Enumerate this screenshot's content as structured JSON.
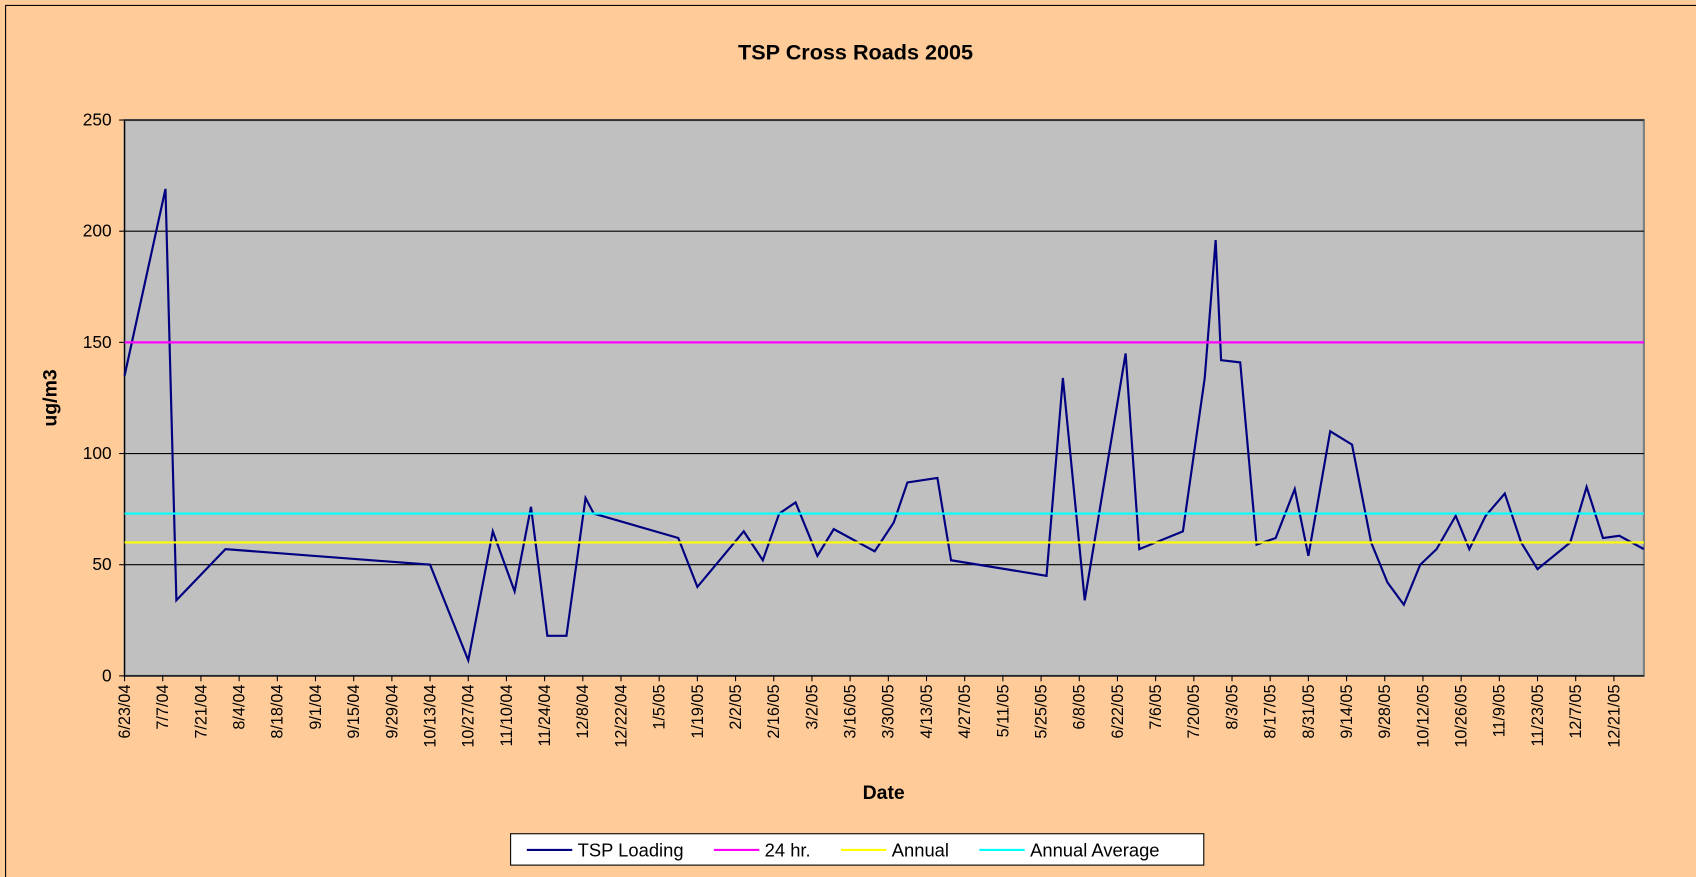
{
  "chart_data": {
    "type": "line",
    "title": "TSP Cross Roads 2005",
    "x_label": "Date",
    "y_label": "ug/m3",
    "x": [
      "2004-06-23",
      "2004-07-08",
      "2004-07-12",
      "2004-07-30",
      "2004-10-13",
      "2004-10-27",
      "2004-11-05",
      "2004-11-13",
      "2004-11-19",
      "2004-11-25",
      "2004-12-02",
      "2004-12-09",
      "2004-12-12",
      "2005-01-12",
      "2005-01-19",
      "2005-02-05",
      "2005-02-12",
      "2005-02-18",
      "2005-02-24",
      "2005-03-04",
      "2005-03-10",
      "2005-03-25",
      "2005-04-01",
      "2005-04-06",
      "2005-04-17",
      "2005-04-22",
      "2005-05-27",
      "2005-06-02",
      "2005-06-10",
      "2005-06-25",
      "2005-06-30",
      "2005-07-16",
      "2005-07-24",
      "2005-07-28",
      "2005-07-30",
      "2005-08-06",
      "2005-08-12",
      "2005-08-19",
      "2005-08-26",
      "2005-08-31",
      "2005-09-08",
      "2005-09-16",
      "2005-09-23",
      "2005-09-29",
      "2005-10-05",
      "2005-10-11",
      "2005-10-17",
      "2005-10-24",
      "2005-10-29",
      "2005-11-04",
      "2005-11-11",
      "2005-11-17",
      "2005-11-23",
      "2005-12-05",
      "2005-12-11",
      "2005-12-17",
      "2005-12-23",
      "2006-01-01"
    ],
    "series": [
      {
        "name": "TSP Loading",
        "color": "#000080",
        "values": [
          135,
          219,
          34,
          57,
          50,
          7,
          65,
          38,
          76,
          18,
          18,
          80,
          73,
          62,
          40,
          65,
          52,
          73,
          78,
          54,
          66,
          56,
          69,
          87,
          89,
          52,
          45,
          134,
          34,
          145,
          57,
          65,
          134,
          196,
          142,
          141,
          59,
          62,
          84,
          54,
          110,
          104,
          60,
          42,
          32,
          50,
          57,
          72,
          57,
          72,
          82,
          60,
          48,
          60,
          85,
          62,
          63,
          57
        ]
      },
      {
        "name": "24 hr.",
        "color": "#ff00ff",
        "value": 150
      },
      {
        "name": "Annual",
        "color": "#ffff00",
        "value": 60
      },
      {
        "name": "Annual Average",
        "color": "#00ffff",
        "value": 73
      }
    ],
    "xlim": [
      "2004-06-23",
      "2006-01-01"
    ],
    "xticks": [
      {
        "value": "2004-06-23",
        "label": "6/23/04"
      },
      {
        "value": "2004-07-07",
        "label": "7/7/04"
      },
      {
        "value": "2004-07-21",
        "label": "7/21/04"
      },
      {
        "value": "2004-08-04",
        "label": "8/4/04"
      },
      {
        "value": "2004-08-18",
        "label": "8/18/04"
      },
      {
        "value": "2004-09-01",
        "label": "9/1/04"
      },
      {
        "value": "2004-09-15",
        "label": "9/15/04"
      },
      {
        "value": "2004-09-29",
        "label": "9/29/04"
      },
      {
        "value": "2004-10-13",
        "label": "10/13/04"
      },
      {
        "value": "2004-10-27",
        "label": "10/27/04"
      },
      {
        "value": "2004-11-10",
        "label": "11/10/04"
      },
      {
        "value": "2004-11-24",
        "label": "11/24/04"
      },
      {
        "value": "2004-12-08",
        "label": "12/8/04"
      },
      {
        "value": "2004-12-22",
        "label": "12/22/04"
      },
      {
        "value": "2005-01-05",
        "label": "1/5/05"
      },
      {
        "value": "2005-01-19",
        "label": "1/19/05"
      },
      {
        "value": "2005-02-02",
        "label": "2/2/05"
      },
      {
        "value": "2005-02-16",
        "label": "2/16/05"
      },
      {
        "value": "2005-03-02",
        "label": "3/2/05"
      },
      {
        "value": "2005-03-16",
        "label": "3/16/05"
      },
      {
        "value": "2005-03-30",
        "label": "3/30/05"
      },
      {
        "value": "2005-04-13",
        "label": "4/13/05"
      },
      {
        "value": "2005-04-27",
        "label": "4/27/05"
      },
      {
        "value": "2005-05-11",
        "label": "5/11/05"
      },
      {
        "value": "2005-05-25",
        "label": "5/25/05"
      },
      {
        "value": "2005-06-08",
        "label": "6/8/05"
      },
      {
        "value": "2005-06-22",
        "label": "6/22/05"
      },
      {
        "value": "2005-07-06",
        "label": "7/6/05"
      },
      {
        "value": "2005-07-20",
        "label": "7/20/05"
      },
      {
        "value": "2005-08-03",
        "label": "8/3/05"
      },
      {
        "value": "2005-08-17",
        "label": "8/17/05"
      },
      {
        "value": "2005-08-31",
        "label": "8/31/05"
      },
      {
        "value": "2005-09-14",
        "label": "9/14/05"
      },
      {
        "value": "2005-09-28",
        "label": "9/28/05"
      },
      {
        "value": "2005-10-12",
        "label": "10/12/05"
      },
      {
        "value": "2005-10-26",
        "label": "10/26/05"
      },
      {
        "value": "2005-11-09",
        "label": "11/9/05"
      },
      {
        "value": "2005-11-23",
        "label": "11/23/05"
      },
      {
        "value": "2005-12-07",
        "label": "12/7/05"
      },
      {
        "value": "2005-12-21",
        "label": "12/21/05"
      }
    ],
    "ylim": [
      0,
      250
    ],
    "yticks": [
      0,
      50,
      100,
      150,
      200,
      250
    ],
    "grid": true,
    "legend": "bottom"
  }
}
